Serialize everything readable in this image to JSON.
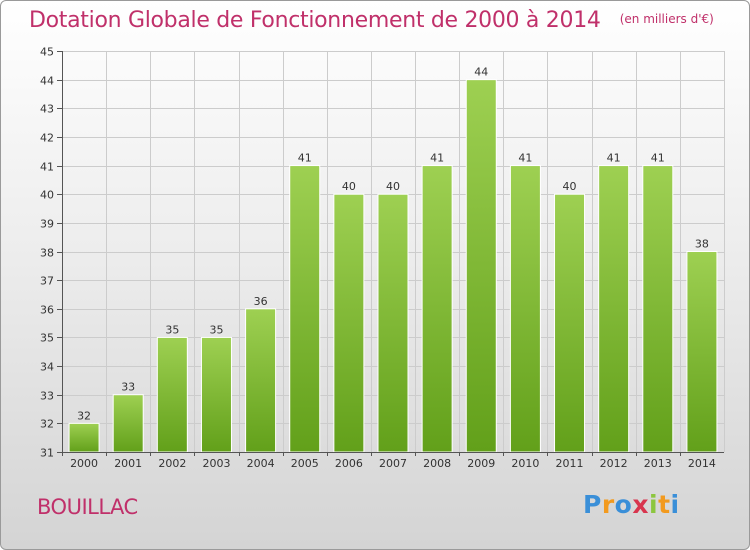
{
  "header": {
    "title": "Dotation Globale de Fonctionnement de 2000 à 2014",
    "subtitle": "(en milliers d'€)"
  },
  "commune": "BOUILLAC",
  "logo": {
    "text": "Proxiti"
  },
  "colors": {
    "title": "#c0306a",
    "bar_light": "#9ed052",
    "bar_dark": "#62a01a",
    "grid": "#cccccc",
    "logo_letters": [
      "#3a8fd8",
      "#f29a1e",
      "#3a8fd8",
      "#d8354e",
      "#8cc63f",
      "#f29a1e"
    ]
  },
  "chart_data": {
    "type": "bar",
    "categories": [
      "2000",
      "2001",
      "2002",
      "2003",
      "2004",
      "2005",
      "2006",
      "2007",
      "2008",
      "2009",
      "2010",
      "2011",
      "2012",
      "2013",
      "2014"
    ],
    "values": [
      32,
      33,
      35,
      35,
      36,
      41,
      40,
      40,
      41,
      44,
      41,
      40,
      41,
      41,
      38
    ],
    "ylim": [
      31,
      45
    ],
    "yticks": [
      31,
      32,
      33,
      34,
      35,
      36,
      37,
      38,
      39,
      40,
      41,
      42,
      43,
      44,
      45
    ],
    "grid": true,
    "legend": "none"
  }
}
